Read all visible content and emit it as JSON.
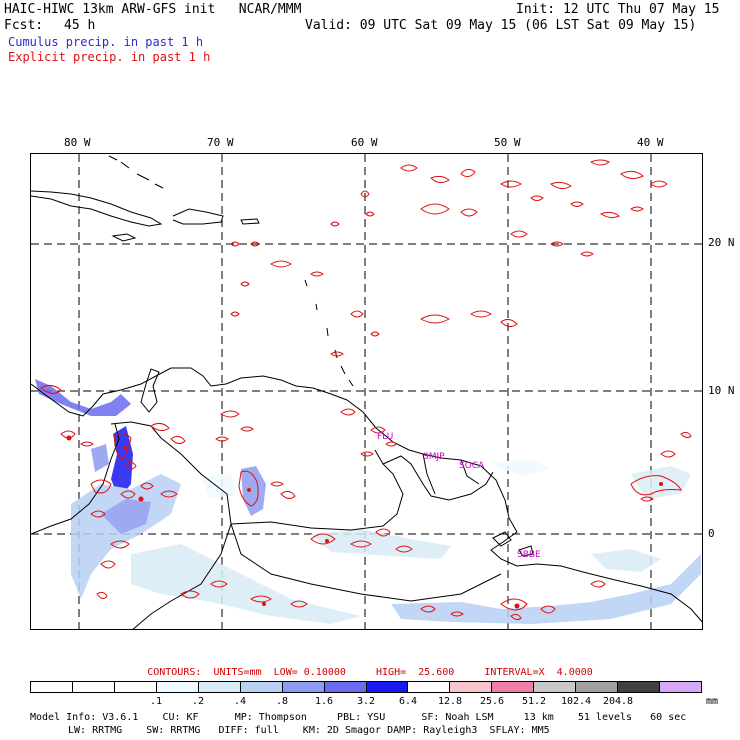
{
  "header": {
    "model_title": "HAIC-HIWC 13km ARW-GFS init   NCAR/MMM",
    "init": "Init: 12 UTC Thu 07 May 15",
    "fcst_label": "Fcst:",
    "fcst_value": "45 h",
    "valid": "Valid: 09 UTC Sat 09 May 15 (06 LST Sat 09 May 15)",
    "cumulus": "Cumulus precip. in past 1 h",
    "explicit": "Explicit precip. in past 1 h"
  },
  "colors": {
    "cumulus": "#2a2ad0",
    "explicit": "#e01010",
    "city": "#cc00cc",
    "land": "#000000",
    "grid": "#000000"
  },
  "map": {
    "lon_labels": [
      "80 W",
      "70 W",
      "60 W",
      "50 W",
      "40 W"
    ],
    "lat_labels": [
      "20 N",
      "10 N",
      "0"
    ],
    "cities": [
      "FLU",
      "SMJP",
      "SOCA",
      "SBBE"
    ]
  },
  "contours": {
    "label": "CONTOURS:",
    "units": "UNITS=mm",
    "low": "LOW= 0.10000",
    "high": "HIGH=  25.600",
    "interval": "INTERVAL=X  4.0000"
  },
  "legend": {
    "colors": [
      "#ffffff",
      "#ffffff",
      "#ffffff",
      "#eefaff",
      "#d8ecf6",
      "#b8d0f4",
      "#8c9cf0",
      "#6c6cf0",
      "#1818f0",
      "#ffffff",
      "#f7c6cc",
      "#f07eaa",
      "#c8c8c8",
      "#a0a0a0",
      "#404040",
      "#d8a8f8"
    ],
    "labels": [
      ".1",
      ".2",
      ".4",
      ".8",
      "1.6",
      "3.2",
      "6.4",
      "12.8",
      "25.6",
      "51.2",
      "102.4",
      "204.8"
    ],
    "units": "mm"
  },
  "footer": {
    "line1": "Model Info: V3.6.1    CU: KF      MP: Thompson     PBL: YSU      SF: Noah LSM     13 km    51 levels   60 sec",
    "line2": "LW: RRTMG    SW: RRTMG   DIFF: full    KM: 2D Smagor DAMP: Rayleigh3  SFLAY: MM5"
  }
}
